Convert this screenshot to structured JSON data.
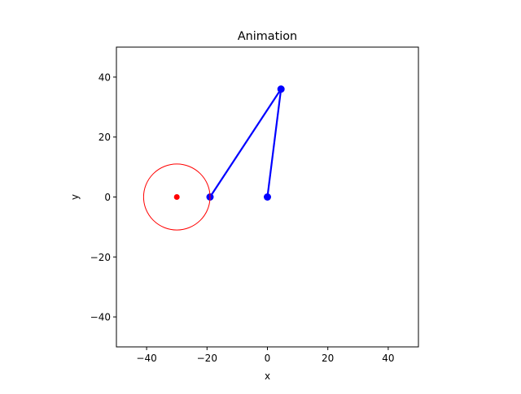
{
  "chart_data": {
    "type": "line",
    "title": "Animation",
    "xlabel": "x",
    "ylabel": "y",
    "xlim": [
      -50,
      50
    ],
    "ylim": [
      -50,
      50
    ],
    "xticks": [
      -40,
      -20,
      0,
      20,
      40
    ],
    "yticks": [
      -40,
      -20,
      0,
      20,
      40
    ],
    "xtick_labels": [
      "−40",
      "−20",
      "0",
      "20",
      "40"
    ],
    "ytick_labels": [
      "−40",
      "−20",
      "0",
      "20",
      "40"
    ],
    "grid": false,
    "series": [
      {
        "kind": "line-with-markers",
        "color": "#0000ff",
        "x": [
          -19,
          4.5,
          0
        ],
        "y": [
          0,
          36,
          0
        ]
      },
      {
        "kind": "circle",
        "color": "#ff0000",
        "center": [
          -30,
          0
        ],
        "radius": 11
      },
      {
        "kind": "point",
        "color": "#ff0000",
        "x": [
          -30
        ],
        "y": [
          0
        ]
      }
    ]
  }
}
